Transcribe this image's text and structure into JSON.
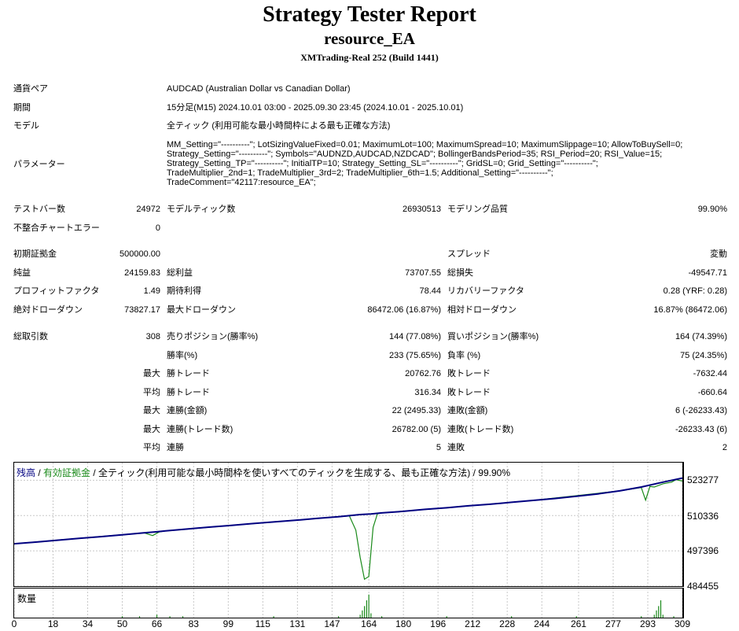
{
  "header": {
    "title": "Strategy Tester Report",
    "ea_name": "resource_EA",
    "server": "XMTrading-Real 252 (Build 1441)"
  },
  "settings": {
    "symbol_label": "通貨ペア",
    "symbol_value": "AUDCAD (Australian Dollar vs Canadian Dollar)",
    "period_label": "期間",
    "period_value": "15分足(M15) 2024.10.01 03:00 - 2025.09.30 23:45 (2024.10.01 - 2025.10.01)",
    "model_label": "モデル",
    "model_value": "全ティック (利用可能な最小時間枠による最も正確な方法)",
    "params_label": "パラメーター",
    "params_value": "MM_Setting=\"----------\"; LotSizingValueFixed=0.01; MaximumLot=100; MaximumSpread=10; MaximumSlippage=10; AllowToBuySell=0;\nStrategy_Setting=\"----------\"; Symbols=\"AUDNZD,AUDCAD,NZDCAD\"; BollingerBandsPeriod=35; RSI_Period=20; RSI_Value=15;\nStrategy_Setting_TP=\"----------\"; InitialTP=10; Strategy_Setting_SL=\"----------\"; GridSL=0; Grid_Setting=\"----------\";\nTradeMultiplier_2nd=1; TradeMultiplier_3rd=2; TradeMultiplier_6th=1.5; Additional_Setting=\"----------\";\nTradeComment=\"42117:resource_EA\";"
  },
  "stats": {
    "bars_label": "テストバー数",
    "bars": "24972",
    "ticks_label": "モデルティック数",
    "ticks": "26930513",
    "quality_label": "モデリング品質",
    "quality": "99.90%",
    "mismatch_label": "不整合チャートエラー",
    "mismatch": "0",
    "deposit_label": "初期証拠金",
    "deposit": "500000.00",
    "spread_label": "スプレッド",
    "spread": "変動",
    "net_label": "純益",
    "net": "24159.83",
    "gross_profit_label": "総利益",
    "gross_profit": "73707.55",
    "gross_loss_label": "総損失",
    "gross_loss": "-49547.71",
    "pf_label": "プロフィットファクタ",
    "pf": "1.49",
    "expected_label": "期待利得",
    "expected": "78.44",
    "recovery_label": "リカバリーファクタ",
    "recovery": "0.28 (YRF: 0.28)",
    "abs_dd_label": "絶対ドローダウン",
    "abs_dd": "73827.17",
    "max_dd_label": "最大ドローダウン",
    "max_dd": "86472.06 (16.87%)",
    "rel_dd_label": "相対ドローダウン",
    "rel_dd": "16.87% (86472.06)",
    "trades_label": "総取引数",
    "trades": "308",
    "short_label": "売りポジション(勝率%)",
    "short": "144 (77.08%)",
    "long_label": "買いポジション(勝率%)",
    "long": "164 (74.39%)",
    "win_label": "勝率(%)",
    "win": "233 (75.65%)",
    "loss_label": "負率 (%)",
    "loss": "75 (24.35%)",
    "max_word": "最大",
    "avg_word": "平均",
    "win_trade_label": "勝トレード",
    "lose_trade_label": "敗トレード",
    "largest_win": "20762.76",
    "largest_loss": "-7632.44",
    "avg_win": "316.34",
    "avg_loss": "-660.64",
    "cons_win_amt_label": "連勝(金額)",
    "cons_win_amt": "22 (2495.33)",
    "cons_loss_amt_label": "連敗(金額)",
    "cons_loss_amt": "6 (-26233.43)",
    "cons_win_cnt_label": "連勝(トレード数)",
    "cons_win_cnt": "26782.00 (5)",
    "cons_loss_cnt_label": "連敗(トレード数)",
    "cons_loss_cnt": "-26233.43 (6)",
    "avg_cons_win_label": "連勝",
    "avg_cons_win": "5",
    "avg_cons_loss_label": "連敗",
    "avg_cons_loss": "2"
  },
  "graph": {
    "legend_balance": "残高",
    "legend_sep": " / ",
    "legend_equity": "有効証拠金",
    "legend_rest": " / 全ティック(利用可能な最小時間枠を使いすべてのティックを生成する、最も正確な方法) / 99.90%",
    "volume_label": "数量",
    "y_labels": [
      "523277",
      "510336",
      "497396",
      "484455"
    ],
    "x_labels": [
      "0",
      "18",
      "34",
      "50",
      "66",
      "83",
      "99",
      "115",
      "131",
      "147",
      "164",
      "180",
      "196",
      "212",
      "228",
      "244",
      "261",
      "277",
      "293",
      "309"
    ],
    "balance_color": "#000080",
    "equity_color": "#1a8a1a"
  },
  "chart_data": {
    "type": "line",
    "xlim": [
      0,
      309
    ],
    "ylim": [
      484455,
      529747
    ],
    "series": [
      {
        "name": "残高",
        "x": [
          0,
          10,
          20,
          30,
          40,
          50,
          60,
          66,
          70,
          80,
          90,
          100,
          110,
          120,
          130,
          140,
          150,
          160,
          165,
          170,
          180,
          190,
          200,
          210,
          220,
          230,
          240,
          250,
          260,
          270,
          280,
          290,
          300,
          309
        ],
        "values": [
          500000,
          500600,
          501300,
          502000,
          502600,
          503300,
          504000,
          504400,
          504700,
          505400,
          506100,
          506700,
          507400,
          508000,
          508600,
          509300,
          509900,
          510700,
          510900,
          511300,
          511900,
          512600,
          513200,
          513900,
          514500,
          515200,
          515900,
          516600,
          517400,
          518300,
          519400,
          520800,
          522600,
          524100
        ]
      },
      {
        "name": "有効証拠金",
        "x": [
          0,
          30,
          60,
          64,
          67,
          70,
          100,
          140,
          155,
          158,
          160,
          162,
          164,
          166,
          168,
          170,
          200,
          240,
          280,
          290,
          292,
          294,
          296,
          300,
          304,
          306,
          309
        ],
        "values": [
          500000,
          502000,
          504000,
          503000,
          504300,
          504700,
          506700,
          509300,
          510200,
          505000,
          495000,
          487000,
          488000,
          506000,
          511000,
          511300,
          513200,
          515900,
          519400,
          520600,
          516000,
          521000,
          520800,
          522000,
          522600,
          523500,
          523000
        ]
      },
      {
        "name": "数量",
        "x": [
          50,
          58,
          66,
          72,
          78,
          120,
          150,
          160,
          161,
          162,
          163,
          164,
          165,
          170,
          200,
          230,
          260,
          290,
          296,
          297,
          298,
          299,
          300,
          305
        ],
        "values": [
          0.01,
          0.01,
          0.02,
          0.01,
          0.01,
          0.01,
          0.01,
          0.02,
          0.05,
          0.08,
          0.12,
          0.16,
          0.03,
          0.01,
          0.01,
          0.01,
          0.01,
          0.01,
          0.02,
          0.05,
          0.08,
          0.12,
          0.02,
          0.01
        ]
      }
    ]
  }
}
